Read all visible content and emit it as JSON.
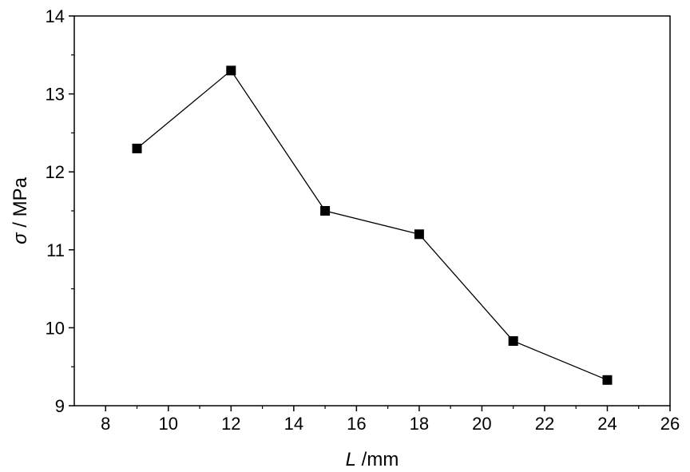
{
  "chart_data": {
    "type": "line",
    "title": "",
    "xlabel": {
      "symbol": "L",
      "unit": " /mm"
    },
    "ylabel": {
      "symbol": "σ",
      "unit": " / MPa"
    },
    "xlim": [
      7,
      26
    ],
    "ylim": [
      9,
      14
    ],
    "xticks": [
      8,
      10,
      12,
      14,
      16,
      18,
      20,
      22,
      24,
      26
    ],
    "yticks": [
      9,
      10,
      11,
      12,
      13,
      14
    ],
    "grid": false,
    "legend": "none",
    "marker": "square",
    "color": "#000000",
    "series": [
      {
        "x": [
          9,
          12,
          15,
          18,
          21,
          24
        ],
        "y": [
          12.3,
          13.3,
          11.5,
          11.2,
          9.83,
          9.33
        ]
      }
    ]
  }
}
